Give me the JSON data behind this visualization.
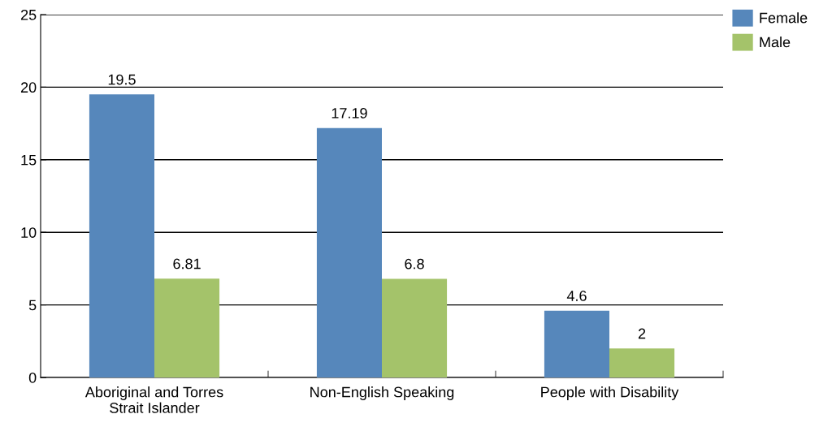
{
  "chart_data": {
    "type": "bar",
    "categories": [
      "Aboriginal and Torres\nStrait Islander",
      "Non-English Speaking",
      "People with Disability"
    ],
    "series": [
      {
        "name": "Female",
        "color": "#5687bb",
        "values": [
          19.5,
          17.19,
          4.6
        ]
      },
      {
        "name": "Male",
        "color": "#a4c36a",
        "values": [
          6.81,
          6.8,
          2
        ]
      }
    ],
    "ylim": [
      0,
      25
    ],
    "yticks": [
      0,
      5,
      10,
      15,
      20,
      25
    ],
    "grid": "y",
    "legend": "top right",
    "data_labels": true
  }
}
